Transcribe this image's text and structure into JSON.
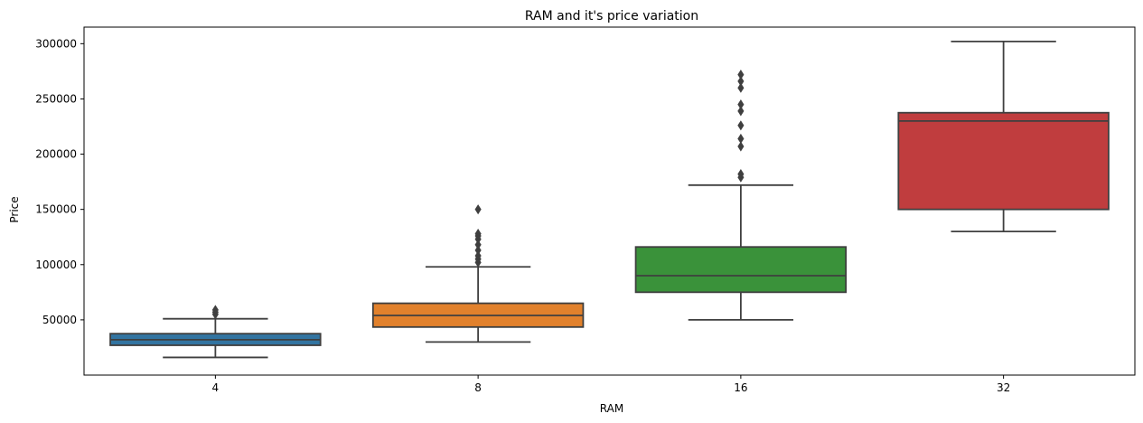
{
  "chart_data": {
    "type": "box",
    "title": "RAM and it's price variation",
    "xlabel": "RAM",
    "ylabel": "Price",
    "ylim": [
      0,
      315000
    ],
    "yticks": [
      50000,
      100000,
      150000,
      200000,
      250000,
      300000
    ],
    "categories": [
      "4",
      "8",
      "16",
      "32"
    ],
    "series": [
      {
        "category": "4",
        "color": "#3274a1",
        "whisker_low": 15990,
        "q1": 27000,
        "median": 32000,
        "q3": 37500,
        "whisker_high": 50990,
        "outliers": [
          54990,
          56990,
          58990
        ]
      },
      {
        "category": "8",
        "color": "#e1812c",
        "whisker_low": 29990,
        "q1": 43500,
        "median": 54000,
        "q3": 65000,
        "whisker_high": 97990,
        "outliers": [
          101990,
          104990,
          107990,
          112990,
          117990,
          122990,
          125990,
          127990,
          149990
        ]
      },
      {
        "category": "16",
        "color": "#3a923a",
        "whisker_low": 49990,
        "q1": 75000,
        "median": 90000,
        "q3": 116000,
        "whisker_high": 171990,
        "outliers": [
          178990,
          181990,
          206990,
          213990,
          225990,
          238990,
          244990,
          259990,
          265990,
          271990
        ]
      },
      {
        "category": "32",
        "color": "#c03d3e",
        "whisker_low": 129990,
        "q1": 150000,
        "median": 230000,
        "q3": 237500,
        "whisker_high": 302000,
        "outliers": []
      }
    ]
  }
}
